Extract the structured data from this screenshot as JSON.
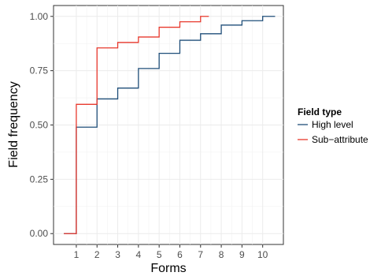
{
  "chart_data": {
    "type": "line",
    "step": true,
    "xlabel": "Forms",
    "ylabel": "Field frequency",
    "xlim": [
      -0.1,
      11.0
    ],
    "ylim": [
      -0.05,
      1.05
    ],
    "x_ticks": [
      1,
      2,
      3,
      4,
      5,
      6,
      7,
      8,
      9,
      10
    ],
    "y_ticks": [
      0.0,
      0.25,
      0.5,
      0.75,
      1.0
    ],
    "x_tick_labels": [
      "1",
      "2",
      "3",
      "4",
      "5",
      "6",
      "7",
      "8",
      "9",
      "10"
    ],
    "y_tick_labels": [
      "0.00",
      "0.25",
      "0.50",
      "0.75",
      "1.00"
    ],
    "grid": true,
    "legend": {
      "title": "Field type",
      "position": "right"
    },
    "series": [
      {
        "name": "High level",
        "color": "#1f4e79",
        "points": [
          [
            0.4,
            0.0
          ],
          [
            1,
            0.49
          ],
          [
            2,
            0.62
          ],
          [
            3,
            0.67
          ],
          [
            4,
            0.76
          ],
          [
            5,
            0.83
          ],
          [
            6,
            0.89
          ],
          [
            7,
            0.92
          ],
          [
            8,
            0.96
          ],
          [
            9,
            0.98
          ],
          [
            10,
            1.0
          ],
          [
            10.6,
            1.0
          ]
        ]
      },
      {
        "name": "Sub−attribute",
        "color": "#e8392d",
        "points": [
          [
            0.4,
            0.0
          ],
          [
            1,
            0.595
          ],
          [
            2,
            0.855
          ],
          [
            3,
            0.88
          ],
          [
            4,
            0.905
          ],
          [
            5,
            0.95
          ],
          [
            6,
            0.975
          ],
          [
            7,
            1.0
          ],
          [
            7.4,
            1.0
          ]
        ]
      }
    ]
  }
}
